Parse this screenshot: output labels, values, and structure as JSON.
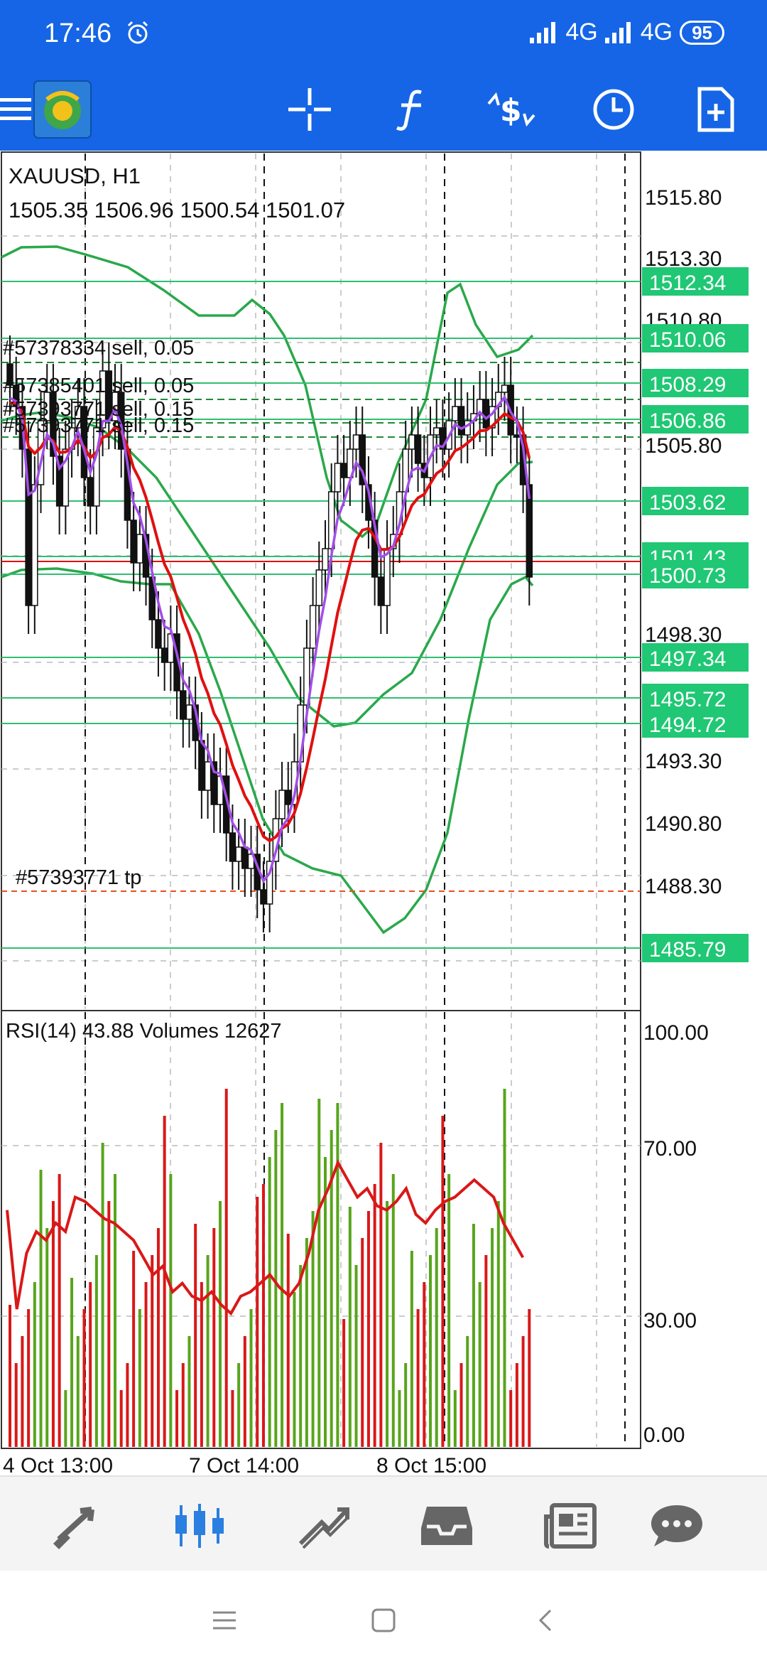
{
  "status": {
    "time": "17:46",
    "network1": "4G",
    "network2": "4G",
    "battery": "95"
  },
  "toolbar": {
    "icons": [
      "menu-icon",
      "mt4-logo-icon",
      "crosshair-icon",
      "indicators-icon",
      "trade-icon",
      "timeframe-icon",
      "new-order-icon"
    ]
  },
  "chart": {
    "symbol_label": "XAUUSD, H1",
    "ohlc_label": "1505.35 1506.96 1500.54 1501.07",
    "order_labels": [
      "#57378334 sell, 0.05",
      "#57385401 sell, 0.05",
      "#57393771 sell, 0.15",
      "#57393771 sell, 0.15"
    ],
    "tp_label": "#57393771 tp",
    "price_axis": [
      "1515.80",
      "1513.30",
      "1510.80",
      "1505.80",
      "1498.30",
      "1493.30",
      "1490.80",
      "1488.30"
    ],
    "price_badges": [
      "1512.34",
      "1510.06",
      "1508.29",
      "1506.86",
      "1503.62",
      "1501.43",
      "1500.73",
      "1497.34",
      "1495.72",
      "1494.72",
      "1485.79"
    ],
    "rsi_label": "RSI(14) 43.88 Volumes 12627",
    "rsi_axis": [
      "100.00",
      "70.00",
      "30.00",
      "0.00"
    ],
    "time_axis": [
      "4 Oct 13:00",
      "7 Oct 14:00",
      "8 Oct 15:00"
    ],
    "colors": {
      "grid": "#bbbbbb",
      "band": "#2aa84a",
      "ma_red": "#e01010",
      "ma_purple": "#a24ee8",
      "badge": "#20c774",
      "vol_green": "#58a51c",
      "vol_red": "#d91818"
    }
  },
  "chart_data": {
    "type": "candlestick",
    "title": "",
    "y_axis_ticks": [
      1515.8,
      1513.3,
      1510.8,
      1505.8,
      1498.3,
      1493.3,
      1490.8,
      1488.3
    ],
    "horizontal_levels": [
      1512.34,
      1510.06,
      1508.29,
      1506.86,
      1503.62,
      1501.43,
      1500.73,
      1497.34,
      1495.72,
      1494.72,
      1485.79
    ],
    "x_labels": [
      "4 Oct 13:00",
      "7 Oct 14:00",
      "8 Oct 15:00"
    ],
    "last_candle": {
      "open": 1505.35,
      "high": 1506.96,
      "low": 1500.54,
      "close": 1501.07
    },
    "rsi": {
      "period": 14,
      "value": 43.88,
      "ylim": [
        0,
        100
      ],
      "ticks": [
        100,
        70,
        30,
        0
      ]
    },
    "volume_last": 12627
  },
  "bottom_nav": {
    "items": [
      "quotes-icon",
      "chart-icon",
      "trade-tab-icon",
      "history-icon",
      "news-icon",
      "chat-icon"
    ]
  }
}
